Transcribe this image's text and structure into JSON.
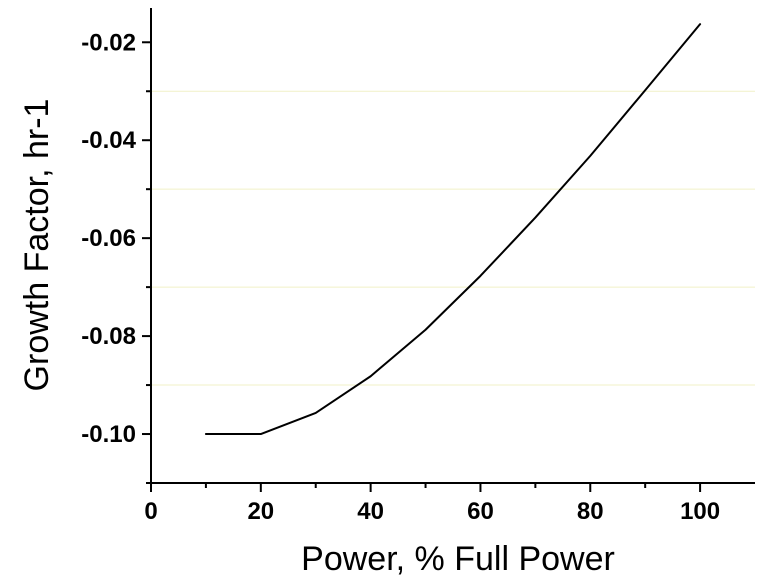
{
  "chart_data": {
    "type": "line",
    "xlabel": "Power, % Full Power",
    "ylabel": "Growth Factor, hr-1",
    "xlim": [
      0,
      110
    ],
    "ylim": [
      -0.11,
      -0.013
    ],
    "x_ticks": [
      0,
      20,
      40,
      60,
      80,
      100
    ],
    "x_tick_labels": [
      "0",
      "20",
      "40",
      "60",
      "80",
      "100"
    ],
    "y_ticks": [
      -0.1,
      -0.08,
      -0.06,
      -0.04,
      -0.02
    ],
    "y_tick_labels": [
      "-0.10",
      "-0.08",
      "-0.06",
      "-0.04",
      "-0.02"
    ],
    "grid": {
      "horizontal": true,
      "values": [
        -0.03,
        -0.05,
        -0.07,
        -0.09
      ],
      "color": "#f1f1c7"
    },
    "series": [
      {
        "values": [
          {
            "x": 10,
            "y": -0.1
          },
          {
            "x": 20,
            "y": -0.1
          },
          {
            "x": 30,
            "y": -0.0957
          },
          {
            "x": 40,
            "y": -0.0882
          },
          {
            "x": 50,
            "y": -0.0787
          },
          {
            "x": 60,
            "y": -0.0677
          },
          {
            "x": 70,
            "y": -0.0558
          },
          {
            "x": 80,
            "y": -0.0432
          },
          {
            "x": 90,
            "y": -0.0298
          },
          {
            "x": 100,
            "y": -0.0163
          }
        ],
        "color": "#000000"
      }
    ]
  }
}
